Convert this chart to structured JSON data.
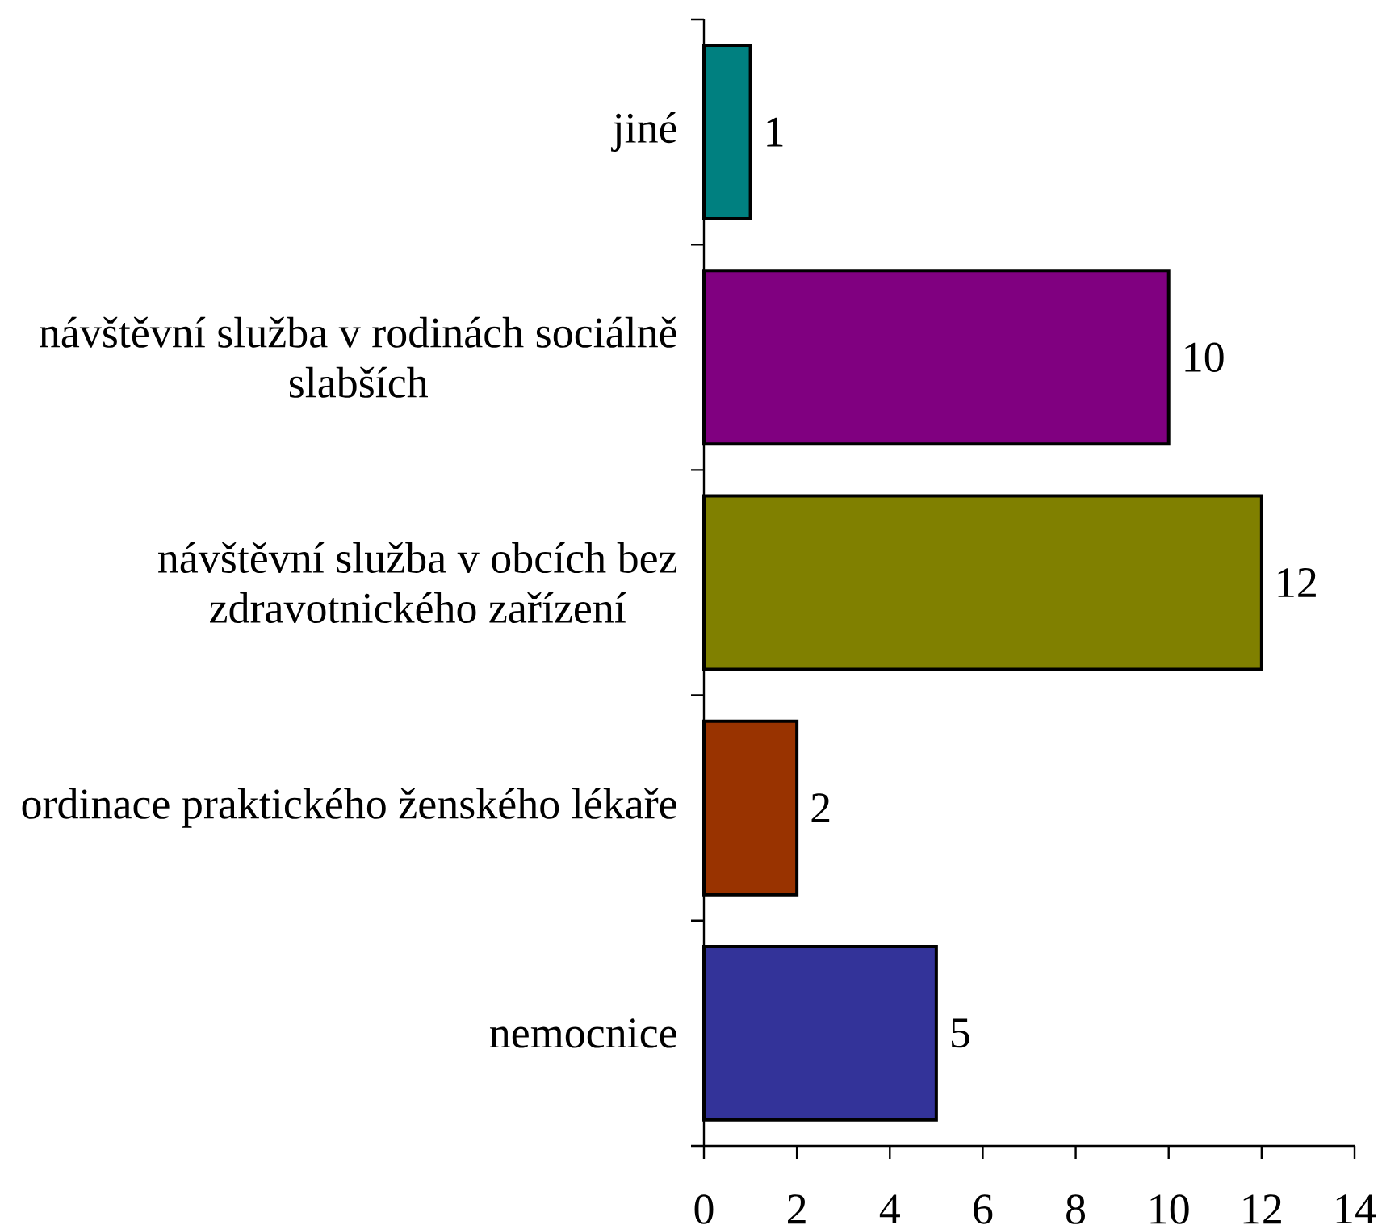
{
  "chart_data": {
    "type": "bar",
    "orientation": "horizontal",
    "categories": [
      "jiné",
      "návštěvní služba v rodinách sociálně slabších",
      "návštěvní služba v obcích bez zdravotnického zařízení",
      "ordinace praktického ženského lékaře",
      "nemocnice"
    ],
    "values": [
      1,
      10,
      12,
      2,
      5
    ],
    "colors": [
      "#008080",
      "#800080",
      "#808000",
      "#993300",
      "#333399"
    ],
    "xlim": [
      0,
      14
    ],
    "xticks": [
      0,
      2,
      4,
      6,
      8,
      10,
      12,
      14
    ],
    "data_labels": true
  }
}
